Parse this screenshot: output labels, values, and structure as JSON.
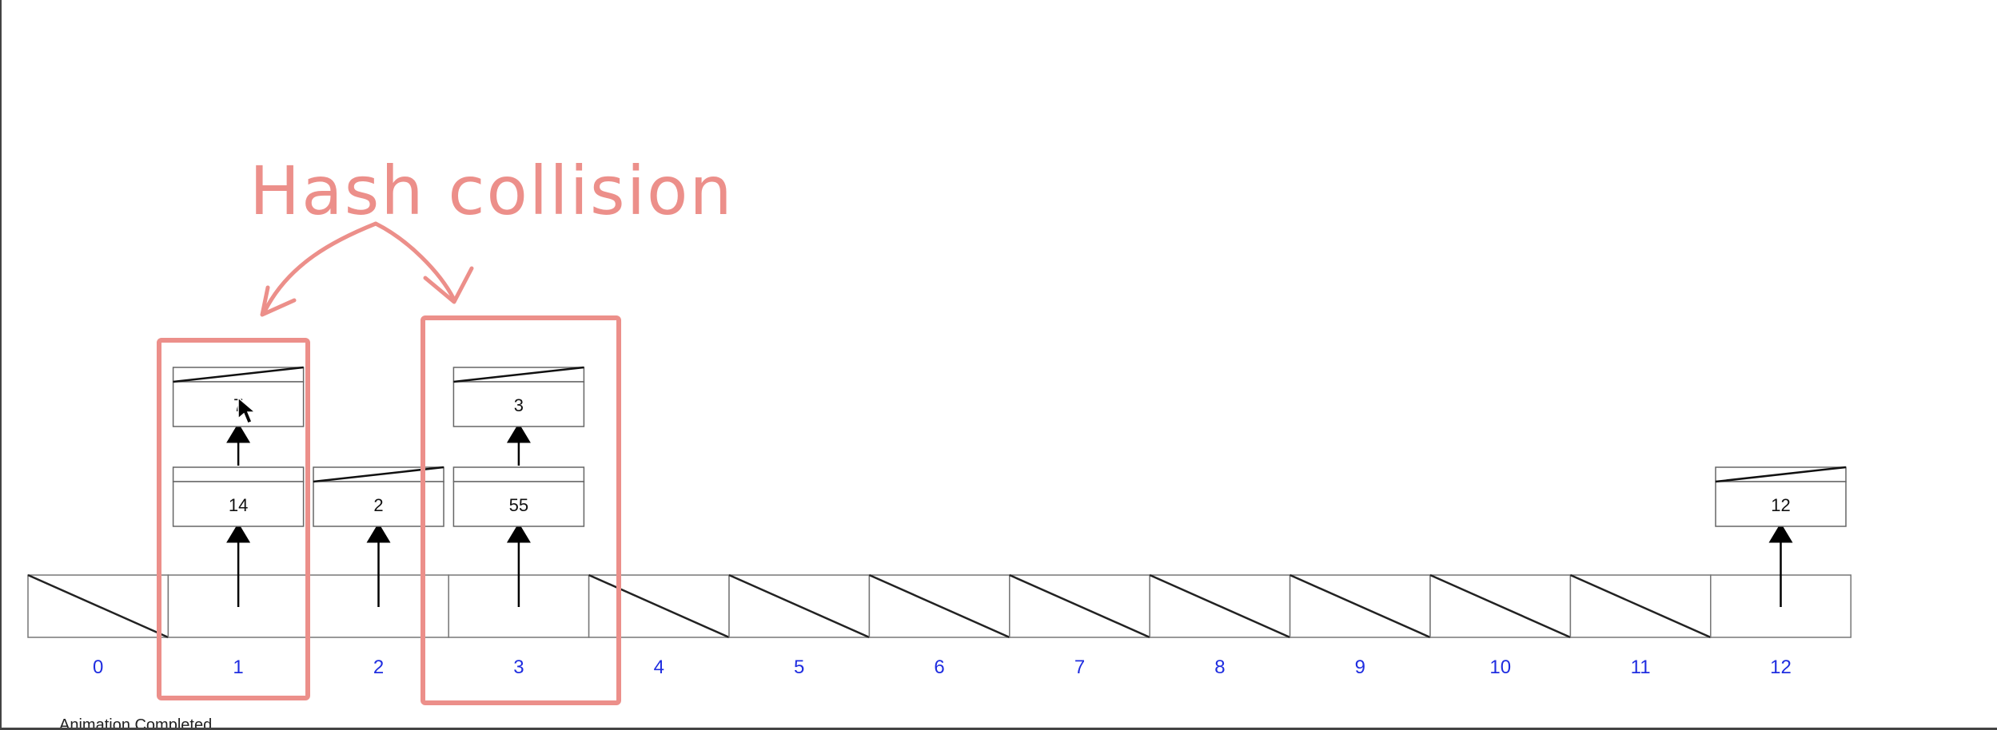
{
  "annotation": {
    "text": "Hash collision",
    "color": "#ec8f8a"
  },
  "status": {
    "text": "Animation Completed"
  },
  "table": {
    "indices": [
      "0",
      "1",
      "2",
      "3",
      "4",
      "5",
      "6",
      "7",
      "8",
      "9",
      "10",
      "11",
      "12"
    ],
    "empty_slots": [
      0,
      4,
      5,
      6,
      7,
      8,
      9,
      10,
      11
    ],
    "chains": [
      {
        "slot": 1,
        "nodes": [
          "14",
          "7"
        ]
      },
      {
        "slot": 2,
        "nodes": [
          "2"
        ]
      },
      {
        "slot": 3,
        "nodes": [
          "55",
          "3"
        ]
      },
      {
        "slot": 12,
        "nodes": [
          "12"
        ]
      }
    ],
    "highlighted_slots": [
      1,
      3
    ]
  },
  "colors": {
    "index_label": "#1f2de0",
    "highlight": "#ec8f8a",
    "outline": "#777777"
  },
  "icons": {
    "cursor": "mouse-pointer-icon"
  }
}
